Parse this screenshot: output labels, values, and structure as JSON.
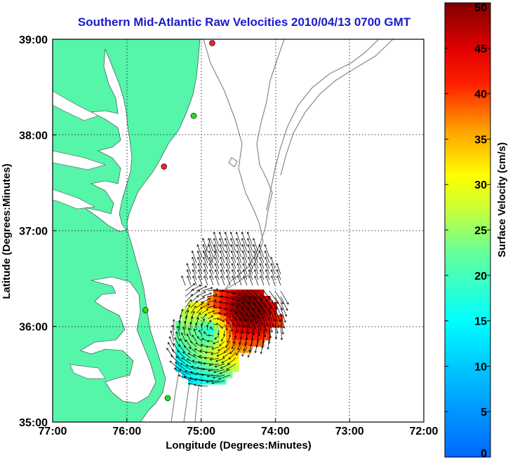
{
  "title": "Southern Mid-Atlantic Raw Velocities 2010/04/13 0700 GMT",
  "x_axis": {
    "label": "Longitude (Degrees:Minutes)",
    "ticks": [
      "77:00",
      "76:00",
      "75:00",
      "74:00",
      "73:00",
      "72:00"
    ],
    "range": [
      -77,
      -72
    ]
  },
  "y_axis": {
    "label": "Latitude (Degrees:Minutes)",
    "ticks": [
      "39:00",
      "38:00",
      "37:00",
      "36:00",
      "35:00"
    ],
    "range": [
      35,
      39
    ]
  },
  "colorbar": {
    "label": "Surface Velocity (cm/s)",
    "ticks": [
      "50",
      "45",
      "40",
      "35",
      "30",
      "25",
      "20",
      "15",
      "10",
      "5",
      "0"
    ],
    "range": [
      0,
      50
    ],
    "colormap": "jet"
  },
  "colors": {
    "land": "#55f5aa",
    "water": "#ffffff",
    "title": "#1a1acc",
    "bathymetry": "#888888",
    "station_active": "#22dd22",
    "station_inactive": "#ee2222"
  },
  "stations": [
    {
      "lon": -74.85,
      "lat": 38.96,
      "status": "inactive"
    },
    {
      "lon": -75.1,
      "lat": 38.2,
      "status": "active"
    },
    {
      "lon": -75.5,
      "lat": 37.67,
      "status": "inactive"
    },
    {
      "lon": -75.75,
      "lat": 36.17,
      "status": "active"
    },
    {
      "lon": -75.45,
      "lat": 35.25,
      "status": "active"
    }
  ]
}
